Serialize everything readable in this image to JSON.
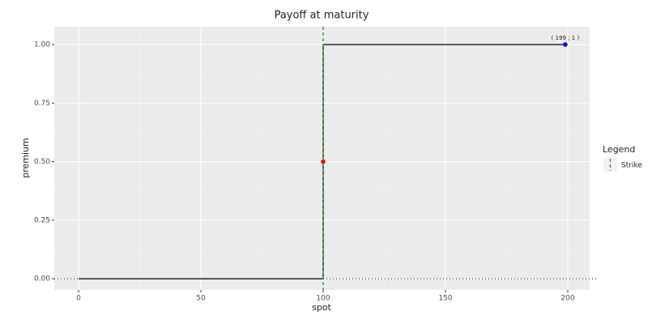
{
  "chart_data": {
    "type": "line",
    "title": "Payoff at maturity",
    "x_label": "spot",
    "y_label": "premium",
    "series": [
      {
        "color": "#000000",
        "x": [
          0,
          100,
          100,
          199
        ],
        "values": [
          0,
          0,
          1,
          1
        ]
      }
    ],
    "points": [
      {
        "x": 100,
        "y": 0.5,
        "color": "#ff0000"
      },
      {
        "x": 199,
        "y": 1,
        "color": "#0000ff",
        "label": "( 199 ; 1 )"
      }
    ],
    "strike": {
      "name": "Strike",
      "x": 100,
      "color": "#2e8b2e"
    },
    "hline": 0,
    "legend_title": "Legend",
    "legend": "right",
    "xlim": [
      -9.95,
      208.95
    ],
    "xticks": [
      0,
      50,
      100,
      150,
      200
    ],
    "ylim": [
      -0.048,
      1.076
    ],
    "yticks": [
      {
        "value": 0,
        "label": "0.00"
      },
      {
        "value": 0.25,
        "label": "0.25"
      },
      {
        "value": 0.5,
        "label": "0.50"
      },
      {
        "value": 0.75,
        "label": "0.75"
      },
      {
        "value": 1,
        "label": "1.00"
      }
    ],
    "grid": true
  }
}
